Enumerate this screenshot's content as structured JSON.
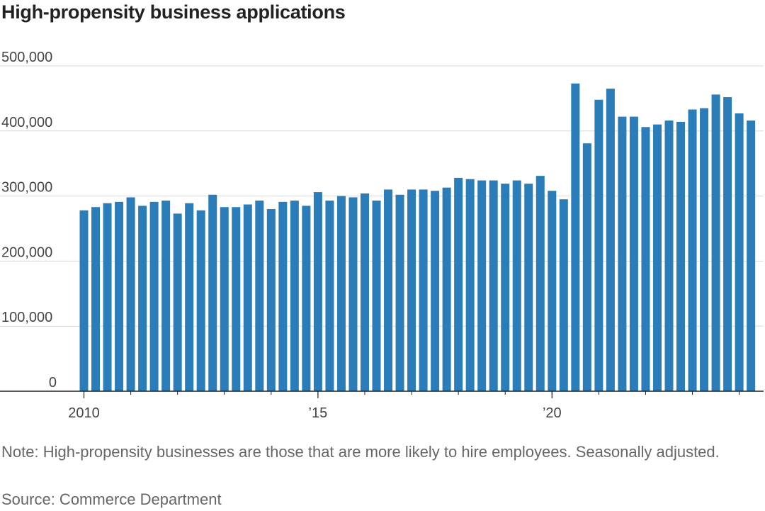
{
  "chart_data": {
    "type": "bar",
    "title": "High-propensity business applications",
    "xlabel": "",
    "ylabel": "",
    "ylim": [
      0,
      500000
    ],
    "yticks": [
      0,
      100000,
      200000,
      300000,
      400000,
      500000
    ],
    "ytick_labels": [
      "0",
      "100,000",
      "200,000",
      "300,000",
      "400,000",
      "500,000"
    ],
    "xtick_labels": [
      {
        "label": "2010",
        "category": "2010 Q1"
      },
      {
        "label": "’15",
        "category": "2015 Q1"
      },
      {
        "label": "’20",
        "category": "2020 Q1"
      }
    ],
    "grid": true,
    "bar_color": "#2a7db8",
    "categories": [
      "2010 Q1",
      "2010 Q2",
      "2010 Q3",
      "2010 Q4",
      "2011 Q1",
      "2011 Q2",
      "2011 Q3",
      "2011 Q4",
      "2012 Q1",
      "2012 Q2",
      "2012 Q3",
      "2012 Q4",
      "2013 Q1",
      "2013 Q2",
      "2013 Q3",
      "2013 Q4",
      "2014 Q1",
      "2014 Q2",
      "2014 Q3",
      "2014 Q4",
      "2015 Q1",
      "2015 Q2",
      "2015 Q3",
      "2015 Q4",
      "2016 Q1",
      "2016 Q2",
      "2016 Q3",
      "2016 Q4",
      "2017 Q1",
      "2017 Q2",
      "2017 Q3",
      "2017 Q4",
      "2018 Q1",
      "2018 Q2",
      "2018 Q3",
      "2018 Q4",
      "2019 Q1",
      "2019 Q2",
      "2019 Q3",
      "2019 Q4",
      "2020 Q1",
      "2020 Q2",
      "2020 Q3",
      "2020 Q4",
      "2021 Q1",
      "2021 Q2",
      "2021 Q3",
      "2021 Q4",
      "2022 Q1",
      "2022 Q2",
      "2022 Q3",
      "2022 Q4",
      "2023 Q1",
      "2023 Q2",
      "2023 Q3",
      "2023 Q4",
      "2024 Q1",
      "2024 Q2"
    ],
    "values": [
      278000,
      283000,
      289000,
      291000,
      298000,
      285000,
      291000,
      293000,
      273000,
      289000,
      278000,
      302000,
      283000,
      283000,
      287000,
      293000,
      280000,
      291000,
      293000,
      285000,
      306000,
      293000,
      300000,
      298000,
      304000,
      293000,
      310000,
      302000,
      310000,
      310000,
      308000,
      313000,
      328000,
      326000,
      324000,
      324000,
      319000,
      324000,
      319000,
      331000,
      308000,
      295000,
      473000,
      381000,
      448000,
      465000,
      422000,
      422000,
      406000,
      410000,
      416000,
      414000,
      433000,
      435000,
      456000,
      452000,
      427000,
      416000
    ]
  },
  "note": "Note: High-propensity businesses are those that are more likely to hire employees. Seasonally adjusted.",
  "source": "Source: Commerce Department"
}
